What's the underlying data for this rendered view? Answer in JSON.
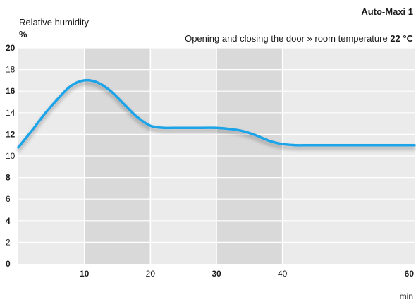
{
  "chart_data": {
    "type": "line",
    "title": "Auto-Maxi 1",
    "subtitle": "Opening and closing the door » room temperature",
    "subtitle_value": "22 °C",
    "ylabel": "Relative humidity",
    "yunit": "%",
    "xlabel": "min",
    "xlim": [
      0,
      60
    ],
    "ylim": [
      0,
      20
    ],
    "x_ticks": [
      10,
      20,
      30,
      40,
      60
    ],
    "x_ticks_bold": [
      10,
      30,
      60
    ],
    "y_ticks": [
      0,
      2,
      4,
      6,
      8,
      10,
      12,
      14,
      16,
      18,
      20
    ],
    "y_ticks_bold": [
      0,
      4,
      8,
      12,
      16,
      20
    ],
    "grid": true,
    "shaded_bands": [
      [
        10,
        20
      ],
      [
        30,
        40
      ]
    ],
    "line_color": "#1aa3e8",
    "series": [
      {
        "x": [
          0,
          2,
          4,
          6,
          8,
          10,
          12,
          14,
          16,
          18,
          20,
          22,
          24,
          26,
          28,
          30,
          32,
          34,
          36,
          38,
          40,
          42,
          44,
          46,
          48,
          50,
          52,
          54,
          56,
          58,
          60
        ],
        "values": [
          10.8,
          12.3,
          13.9,
          15.3,
          16.5,
          17.0,
          16.8,
          16.0,
          14.8,
          13.6,
          12.8,
          12.6,
          12.6,
          12.6,
          12.6,
          12.6,
          12.5,
          12.3,
          11.9,
          11.4,
          11.1,
          11.0,
          11.0,
          11.0,
          11.0,
          11.0,
          11.0,
          11.0,
          11.0,
          11.0,
          11.0
        ]
      }
    ]
  }
}
